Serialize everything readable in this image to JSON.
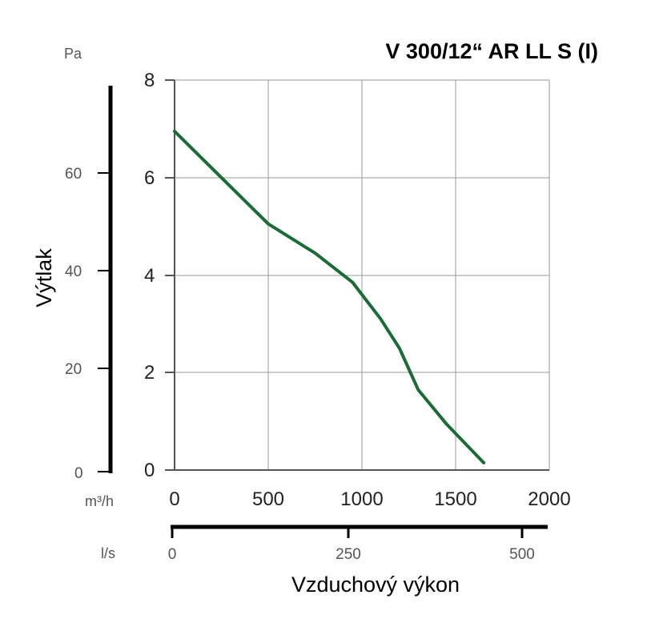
{
  "chart_data": {
    "type": "line",
    "title": "V 300/12“ AR LL S (I)",
    "xlabel": "Vzduchový výkon",
    "ylabel": "Výtlak",
    "x_unit": "m³/h",
    "y_unit": "Pa",
    "secondary_x_unit": "l/s",
    "xlim": [
      0,
      2000
    ],
    "ylim": [
      0,
      8
    ],
    "x_ticks": [
      "0",
      "500",
      "1000",
      "1500",
      "2000"
    ],
    "y_ticks": [
      "0",
      "2",
      "4",
      "6",
      "8"
    ],
    "pa_ticks": [
      "0",
      "20",
      "40",
      "60"
    ],
    "ls_ticks": [
      "0",
      "250",
      "500"
    ],
    "grid": true,
    "line_color": "#1a6b35",
    "series": [
      {
        "x": [
          0,
          250,
          500,
          750,
          950,
          1100,
          1200,
          1300,
          1450,
          1650
        ],
        "y": [
          6.95,
          6.0,
          5.05,
          4.45,
          3.85,
          3.1,
          2.5,
          1.65,
          0.95,
          0.15
        ]
      }
    ]
  }
}
